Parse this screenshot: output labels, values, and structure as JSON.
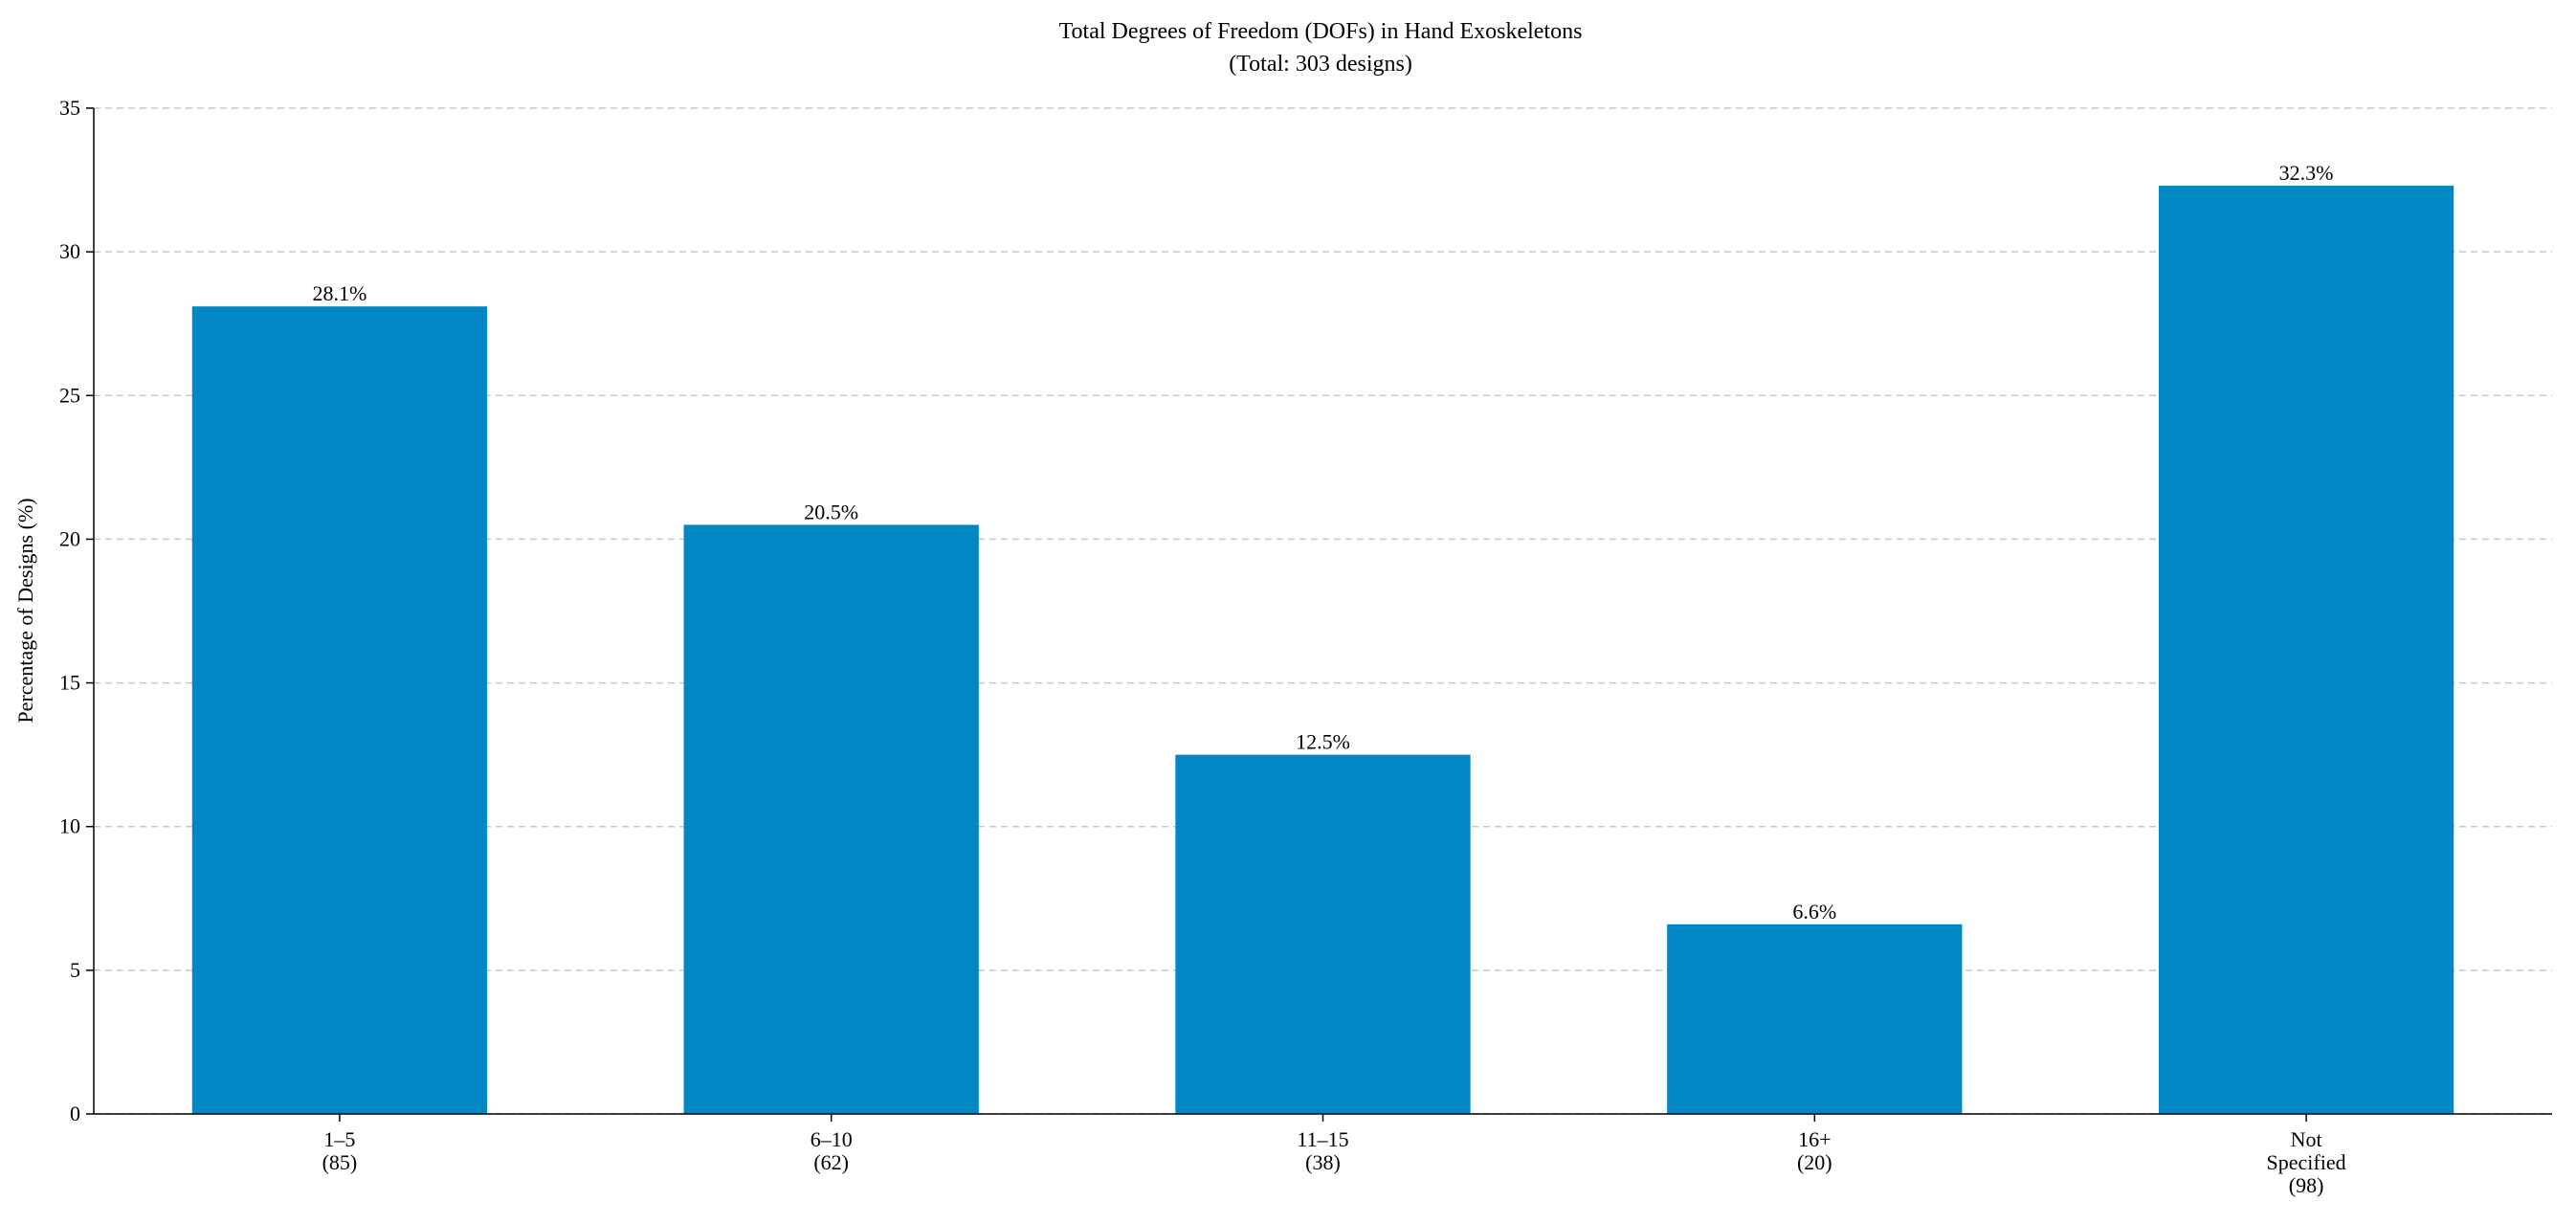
{
  "chart_data": {
    "type": "bar",
    "title": "Total Degrees of Freedom (DOFs) in Hand Exoskeletons",
    "subtitle": "(Total: 303 designs)",
    "y_label": "Percentage of Designs (%)",
    "categories": [
      [
        "1–5",
        "(85)"
      ],
      [
        "6–10",
        "(62)"
      ],
      [
        "11–15",
        "(38)"
      ],
      [
        "16+",
        "(20)"
      ],
      [
        "Not",
        "Specified",
        "(98)"
      ]
    ],
    "values": [
      28.1,
      20.5,
      12.5,
      6.6,
      32.3
    ],
    "value_labels": [
      "28.1%",
      "20.5%",
      "12.5%",
      "6.6%",
      "32.3%"
    ],
    "color": "#0087c4",
    "ylim": [
      0,
      35
    ],
    "yticks": [
      0,
      5,
      10,
      15,
      20,
      25,
      30,
      35
    ],
    "grid": true
  }
}
